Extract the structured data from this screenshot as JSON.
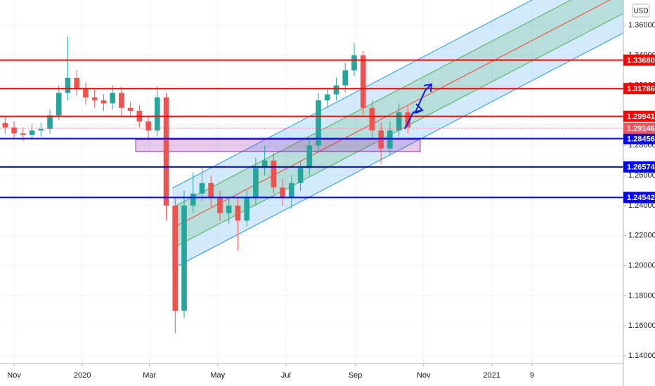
{
  "chart_data": {
    "type": "candlestick",
    "currency": "USD",
    "x": [
      -8,
      0,
      8,
      16,
      24,
      32,
      40,
      48,
      56,
      64,
      72,
      80,
      88,
      96,
      104,
      112,
      120,
      128,
      136,
      144,
      152,
      160,
      168,
      176,
      184,
      192,
      200,
      208,
      216,
      224,
      232,
      240,
      248,
      256,
      264,
      272,
      280,
      288,
      296,
      304,
      312,
      320,
      328,
      336,
      344,
      352
    ],
    "open": [
      1.295,
      1.292,
      1.288,
      1.287,
      1.29,
      1.291,
      1.3,
      1.315,
      1.325,
      1.318,
      1.312,
      1.31,
      1.308,
      1.315,
      1.305,
      1.303,
      1.296,
      1.29,
      1.312,
      1.24,
      1.17,
      1.24,
      1.248,
      1.255,
      1.245,
      1.235,
      1.24,
      1.23,
      1.245,
      1.265,
      1.27,
      1.252,
      1.245,
      1.255,
      1.265,
      1.28,
      1.31,
      1.314,
      1.32,
      1.33,
      1.34,
      1.305,
      1.29,
      1.278,
      1.29,
      1.302
    ],
    "high": [
      1.299,
      1.296,
      1.292,
      1.294,
      1.295,
      1.304,
      1.32,
      1.3525,
      1.33,
      1.322,
      1.317,
      1.314,
      1.32,
      1.319,
      1.309,
      1.307,
      1.3,
      1.3195,
      1.315,
      1.245,
      1.25,
      1.262,
      1.266,
      1.26,
      1.25,
      1.246,
      1.245,
      1.25,
      1.272,
      1.28,
      1.275,
      1.258,
      1.26,
      1.27,
      1.285,
      1.315,
      1.318,
      1.325,
      1.335,
      1.348,
      1.343,
      1.31,
      1.295,
      1.296,
      1.308,
      1.306
    ],
    "low": [
      1.288,
      1.284,
      1.283,
      1.284,
      1.286,
      1.288,
      1.297,
      1.31,
      1.313,
      1.307,
      1.305,
      1.303,
      1.304,
      1.3,
      1.299,
      1.292,
      1.284,
      1.286,
      1.23,
      1.155,
      1.165,
      1.235,
      1.243,
      1.239,
      1.23,
      1.228,
      1.21,
      1.226,
      1.24,
      1.26,
      1.248,
      1.24,
      1.238,
      1.25,
      1.26,
      1.276,
      1.305,
      1.31,
      1.315,
      1.326,
      1.3,
      1.285,
      1.268,
      1.274,
      1.286,
      1.288
    ],
    "close": [
      1.292,
      1.288,
      1.287,
      1.29,
      1.291,
      1.3,
      1.315,
      1.325,
      1.318,
      1.312,
      1.31,
      1.308,
      1.315,
      1.305,
      1.303,
      1.296,
      1.29,
      1.312,
      1.24,
      1.17,
      1.24,
      1.248,
      1.255,
      1.245,
      1.235,
      1.24,
      1.23,
      1.245,
      1.265,
      1.27,
      1.252,
      1.245,
      1.255,
      1.265,
      1.28,
      1.31,
      1.314,
      1.32,
      1.33,
      1.34,
      1.305,
      1.29,
      1.278,
      1.29,
      1.302,
      1.292
    ],
    "up_color": "#26a69a",
    "down_color": "#ef5350",
    "xlim": [
      -12.6,
      544.6
    ],
    "ylim": [
      1.1349,
      1.3768
    ],
    "xticks": [
      {
        "value": 0,
        "label": "Nov"
      },
      {
        "value": 61,
        "label": "2020"
      },
      {
        "value": 121,
        "label": "Mar"
      },
      {
        "value": 182,
        "label": "May"
      },
      {
        "value": 243,
        "label": "Jul"
      },
      {
        "value": 305,
        "label": "Sep"
      },
      {
        "value": 366,
        "label": "Nov"
      },
      {
        "value": 427,
        "label": "2021"
      },
      {
        "value": 463,
        "label": "9"
      }
    ],
    "yticks": [
      {
        "value": 1.14,
        "label": "1.14000"
      },
      {
        "value": 1.16,
        "label": "1.16000"
      },
      {
        "value": 1.18,
        "label": "1.18000"
      },
      {
        "value": 1.2,
        "label": "1.20000"
      },
      {
        "value": 1.22,
        "label": "1.22000"
      },
      {
        "value": 1.24,
        "label": "1.24000"
      },
      {
        "value": 1.26,
        "label": "1.26000"
      },
      {
        "value": 1.28,
        "label": "1.28000"
      },
      {
        "value": 1.3,
        "label": "1.30000"
      },
      {
        "value": 1.32,
        "label": "1.32000"
      },
      {
        "value": 1.34,
        "label": "1.34000"
      },
      {
        "value": 1.36,
        "label": "1.36000"
      }
    ],
    "grid": true,
    "levels": [
      {
        "value": 1.3368,
        "label": "1.33680",
        "color": "#ff0000"
      },
      {
        "value": 1.31786,
        "label": "1.31786",
        "color": "#ff0000"
      },
      {
        "value": 1.29941,
        "label": "1.29941",
        "color": "#ff0000"
      },
      {
        "value": 1.28456,
        "label": "1.28456",
        "color": "#0000ff"
      },
      {
        "value": 1.26574,
        "label": "1.26574",
        "color": "#0000ff"
      },
      {
        "value": 1.24542,
        "label": "1.24542",
        "color": "#0000ff"
      }
    ],
    "last_price": {
      "value": 1.29146,
      "label": "1.29146",
      "color": "#f7525f"
    },
    "zone": {
      "x": [
        108.7,
        363
      ],
      "y": [
        1.276,
        1.2841
      ],
      "color": "#9c27b0"
    },
    "channel": {
      "x": [
        141.3,
        544.6
      ],
      "upper": [
        1.2516,
        1.4086
      ],
      "upper_mid": [
        1.2386,
        1.395
      ],
      "center": [
        1.225,
        1.3815
      ],
      "lower_mid": [
        1.2115,
        1.3679
      ],
      "lower": [
        1.1979,
        1.3549
      ]
    }
  }
}
